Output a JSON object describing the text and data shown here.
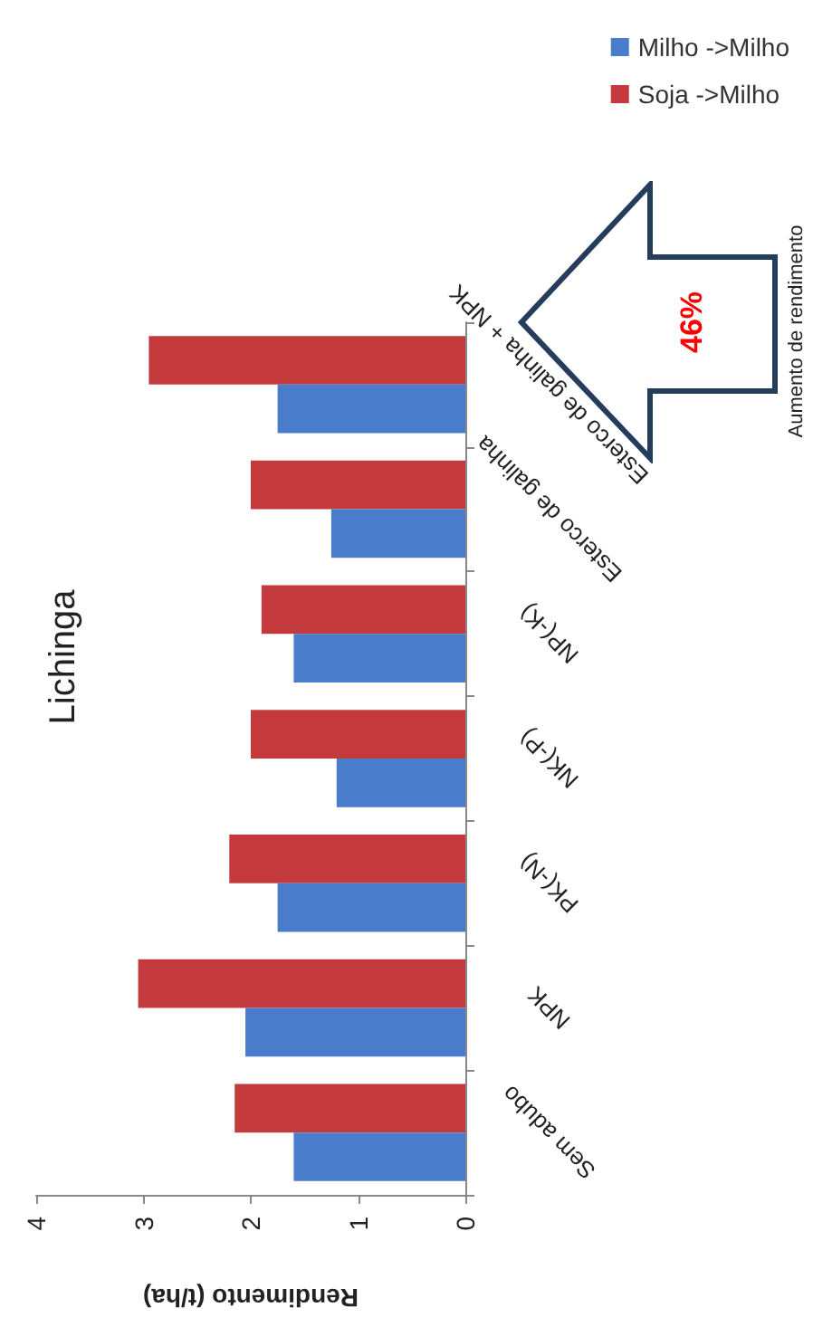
{
  "chart_data": {
    "type": "bar",
    "orientation": "horizontal",
    "title": "Lichinga",
    "xlabel": "Rendimento (t/ha)",
    "categories": [
      "Esterco de galinha + NPK",
      "Esterco de galinha",
      "NP(-K)",
      "NK(-P)",
      "PK(-N)",
      "NPK",
      "Sem adubo"
    ],
    "series": [
      {
        "name": "Milho ->Milho",
        "color": "#4a7ccc",
        "values": [
          1.75,
          1.25,
          1.6,
          1.2,
          1.75,
          2.05,
          1.6
        ]
      },
      {
        "name": "Soja ->Milho",
        "color": "#c4393c",
        "values": [
          2.95,
          2.0,
          1.9,
          2.0,
          2.2,
          3.05,
          2.15
        ]
      }
    ],
    "xlim": [
      4,
      0
    ],
    "xticks": [
      4,
      3,
      2,
      1,
      0
    ],
    "grid": false,
    "legend": "top right",
    "annotations": [
      "46%",
      "Aumento de rendimento"
    ]
  }
}
